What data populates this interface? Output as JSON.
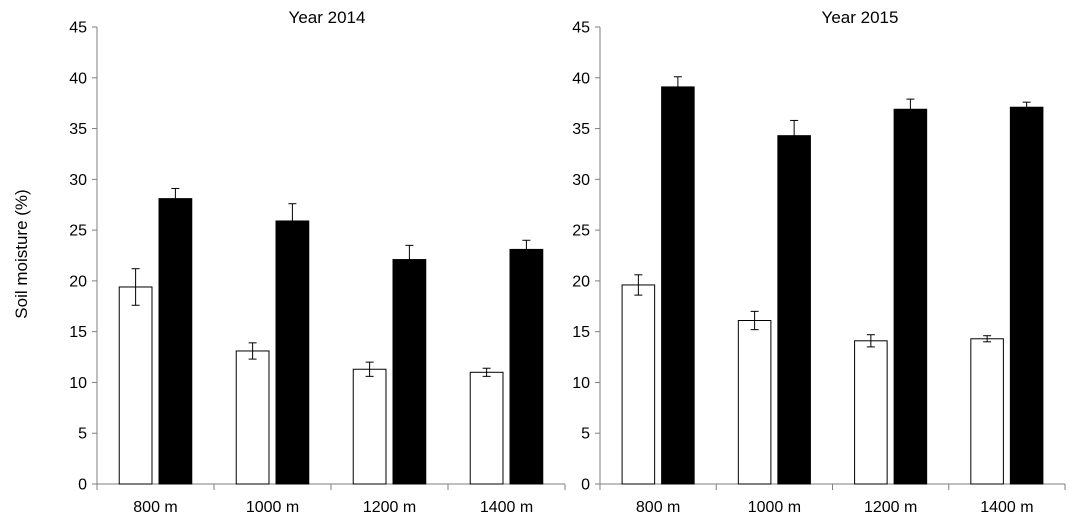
{
  "chart_data": [
    {
      "type": "bar",
      "title": "Year 2014",
      "ylabel": "Soil moisture (%)",
      "xlabel": "",
      "ylim": [
        0,
        45
      ],
      "yticks": [
        0,
        5,
        10,
        15,
        20,
        25,
        30,
        35,
        40,
        45
      ],
      "categories": [
        "800 m",
        "1000 m",
        "1200 m",
        "1400 m"
      ],
      "series": [
        {
          "fill": "#ffffff",
          "values": [
            19.4,
            13.1,
            11.3,
            11.0
          ],
          "errors": [
            1.8,
            0.8,
            0.7,
            0.4
          ]
        },
        {
          "fill": "#000000",
          "values": [
            28.1,
            25.9,
            22.1,
            23.1
          ],
          "errors": [
            1.0,
            1.7,
            1.4,
            0.9
          ]
        }
      ],
      "grid": false,
      "legend": "none"
    },
    {
      "type": "bar",
      "title": "Year 2015",
      "ylabel": "",
      "xlabel": "",
      "ylim": [
        0,
        45
      ],
      "yticks": [
        0,
        5,
        10,
        15,
        20,
        25,
        30,
        35,
        40,
        45
      ],
      "categories": [
        "800 m",
        "1000 m",
        "1200 m",
        "1400 m"
      ],
      "series": [
        {
          "fill": "#ffffff",
          "values": [
            19.6,
            16.1,
            14.1,
            14.3
          ],
          "errors": [
            1.0,
            0.9,
            0.6,
            0.3
          ]
        },
        {
          "fill": "#000000",
          "values": [
            39.1,
            34.3,
            36.9,
            37.1
          ],
          "errors": [
            1.0,
            1.5,
            1.0,
            0.5
          ]
        }
      ],
      "grid": false,
      "legend": "none"
    }
  ]
}
